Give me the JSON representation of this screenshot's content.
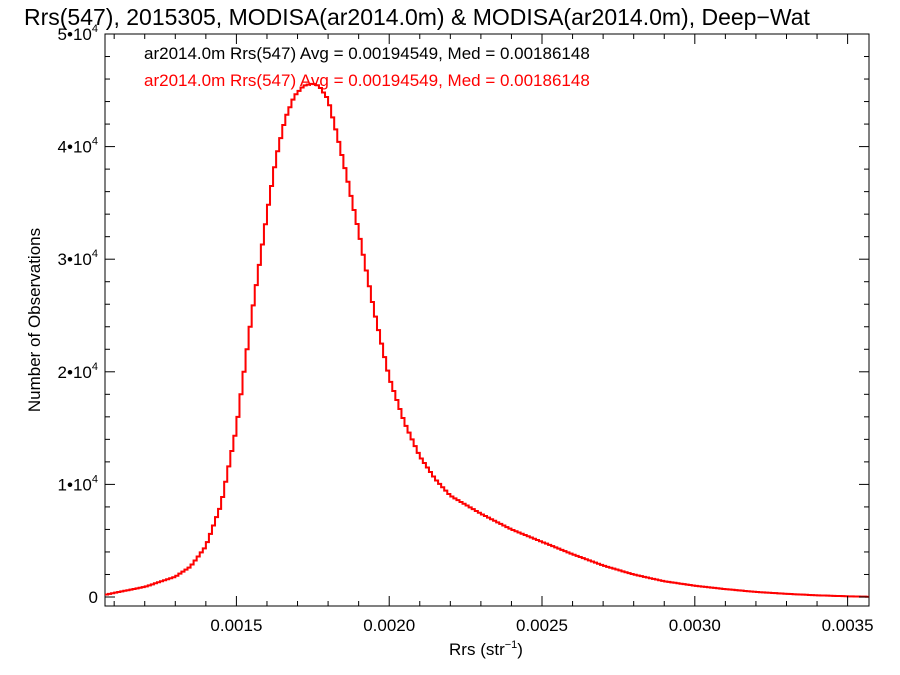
{
  "chart_data": {
    "type": "line",
    "title": "Rrs(547), 2015305, MODISA(ar2014.0m) & MODISA(ar2014.0m), Deep−Wat",
    "xlabel": "Rrs (str",
    "xlabel_sup": "−1",
    "xlabel_end": ")",
    "ylabel": "Number of Observations",
    "xlim": [
      0.00107,
      0.00357
    ],
    "ylim": [
      -800,
      50000
    ],
    "x_ticks": [
      0.0015,
      0.002,
      0.0025,
      0.003,
      0.0035
    ],
    "x_tick_labels": [
      "0.0015",
      "0.0020",
      "0.0025",
      "0.0030",
      "0.0035"
    ],
    "y_ticks": [
      {
        "value": 0,
        "base": "0",
        "exp": ""
      },
      {
        "value": 10000,
        "base": "1•10",
        "exp": "4"
      },
      {
        "value": 20000,
        "base": "2•10",
        "exp": "4"
      },
      {
        "value": 30000,
        "base": "3•10",
        "exp": "4"
      },
      {
        "value": 40000,
        "base": "4•10",
        "exp": "4"
      },
      {
        "value": 50000,
        "base": "5•10",
        "exp": "4"
      }
    ],
    "legend": {
      "placement": "top-left",
      "entries": [
        {
          "text": "ar2014.0m Rrs(547) Avg = 0.00194549, Med = 0.00186148",
          "color": "#000000"
        },
        {
          "text": "ar2014.0m Rrs(547) Avg = 0.00194549, Med = 0.00186148",
          "color": "#ff0000"
        }
      ]
    },
    "series": [
      {
        "color": "#000000",
        "x": [
          0.00107,
          0.0012,
          0.0013,
          0.00135,
          0.0014,
          0.00145,
          0.0015,
          0.00155,
          0.0016,
          0.00163,
          0.00166,
          0.00169,
          0.00172,
          0.00175,
          0.00177,
          0.00178,
          0.0018,
          0.00183,
          0.00186,
          0.0019,
          0.00195,
          0.002,
          0.00205,
          0.0021,
          0.00215,
          0.0022,
          0.0023,
          0.0024,
          0.0025,
          0.0026,
          0.0027,
          0.0028,
          0.0029,
          0.003,
          0.0031,
          0.0032,
          0.0033,
          0.0034,
          0.0035,
          0.00357
        ],
        "y": [
          200,
          900,
          1800,
          2700,
          4500,
          8200,
          15000,
          25000,
          34000,
          39000,
          42500,
          44500,
          45400,
          45600,
          45400,
          45000,
          44200,
          41000,
          37500,
          32500,
          25500,
          19500,
          15500,
          12500,
          10500,
          9000,
          7400,
          6000,
          4900,
          3800,
          2800,
          2000,
          1400,
          1000,
          700,
          450,
          280,
          150,
          60,
          20
        ]
      },
      {
        "color": "#ff0000",
        "x": [
          0.00107,
          0.0012,
          0.0013,
          0.00135,
          0.0014,
          0.00145,
          0.0015,
          0.00155,
          0.0016,
          0.00163,
          0.00166,
          0.00169,
          0.00172,
          0.00175,
          0.00177,
          0.00178,
          0.0018,
          0.00183,
          0.00186,
          0.0019,
          0.00195,
          0.002,
          0.00205,
          0.0021,
          0.00215,
          0.0022,
          0.0023,
          0.0024,
          0.0025,
          0.0026,
          0.0027,
          0.0028,
          0.0029,
          0.003,
          0.0031,
          0.0032,
          0.0033,
          0.0034,
          0.0035,
          0.00357
        ],
        "y": [
          200,
          900,
          1800,
          2700,
          4500,
          8200,
          15000,
          25000,
          34000,
          39000,
          42500,
          44500,
          45400,
          45600,
          45400,
          45000,
          44200,
          41000,
          37500,
          32500,
          25500,
          19500,
          15500,
          12500,
          10500,
          9000,
          7400,
          6000,
          4900,
          3800,
          2800,
          2000,
          1400,
          1000,
          700,
          450,
          280,
          150,
          60,
          20
        ]
      }
    ]
  }
}
